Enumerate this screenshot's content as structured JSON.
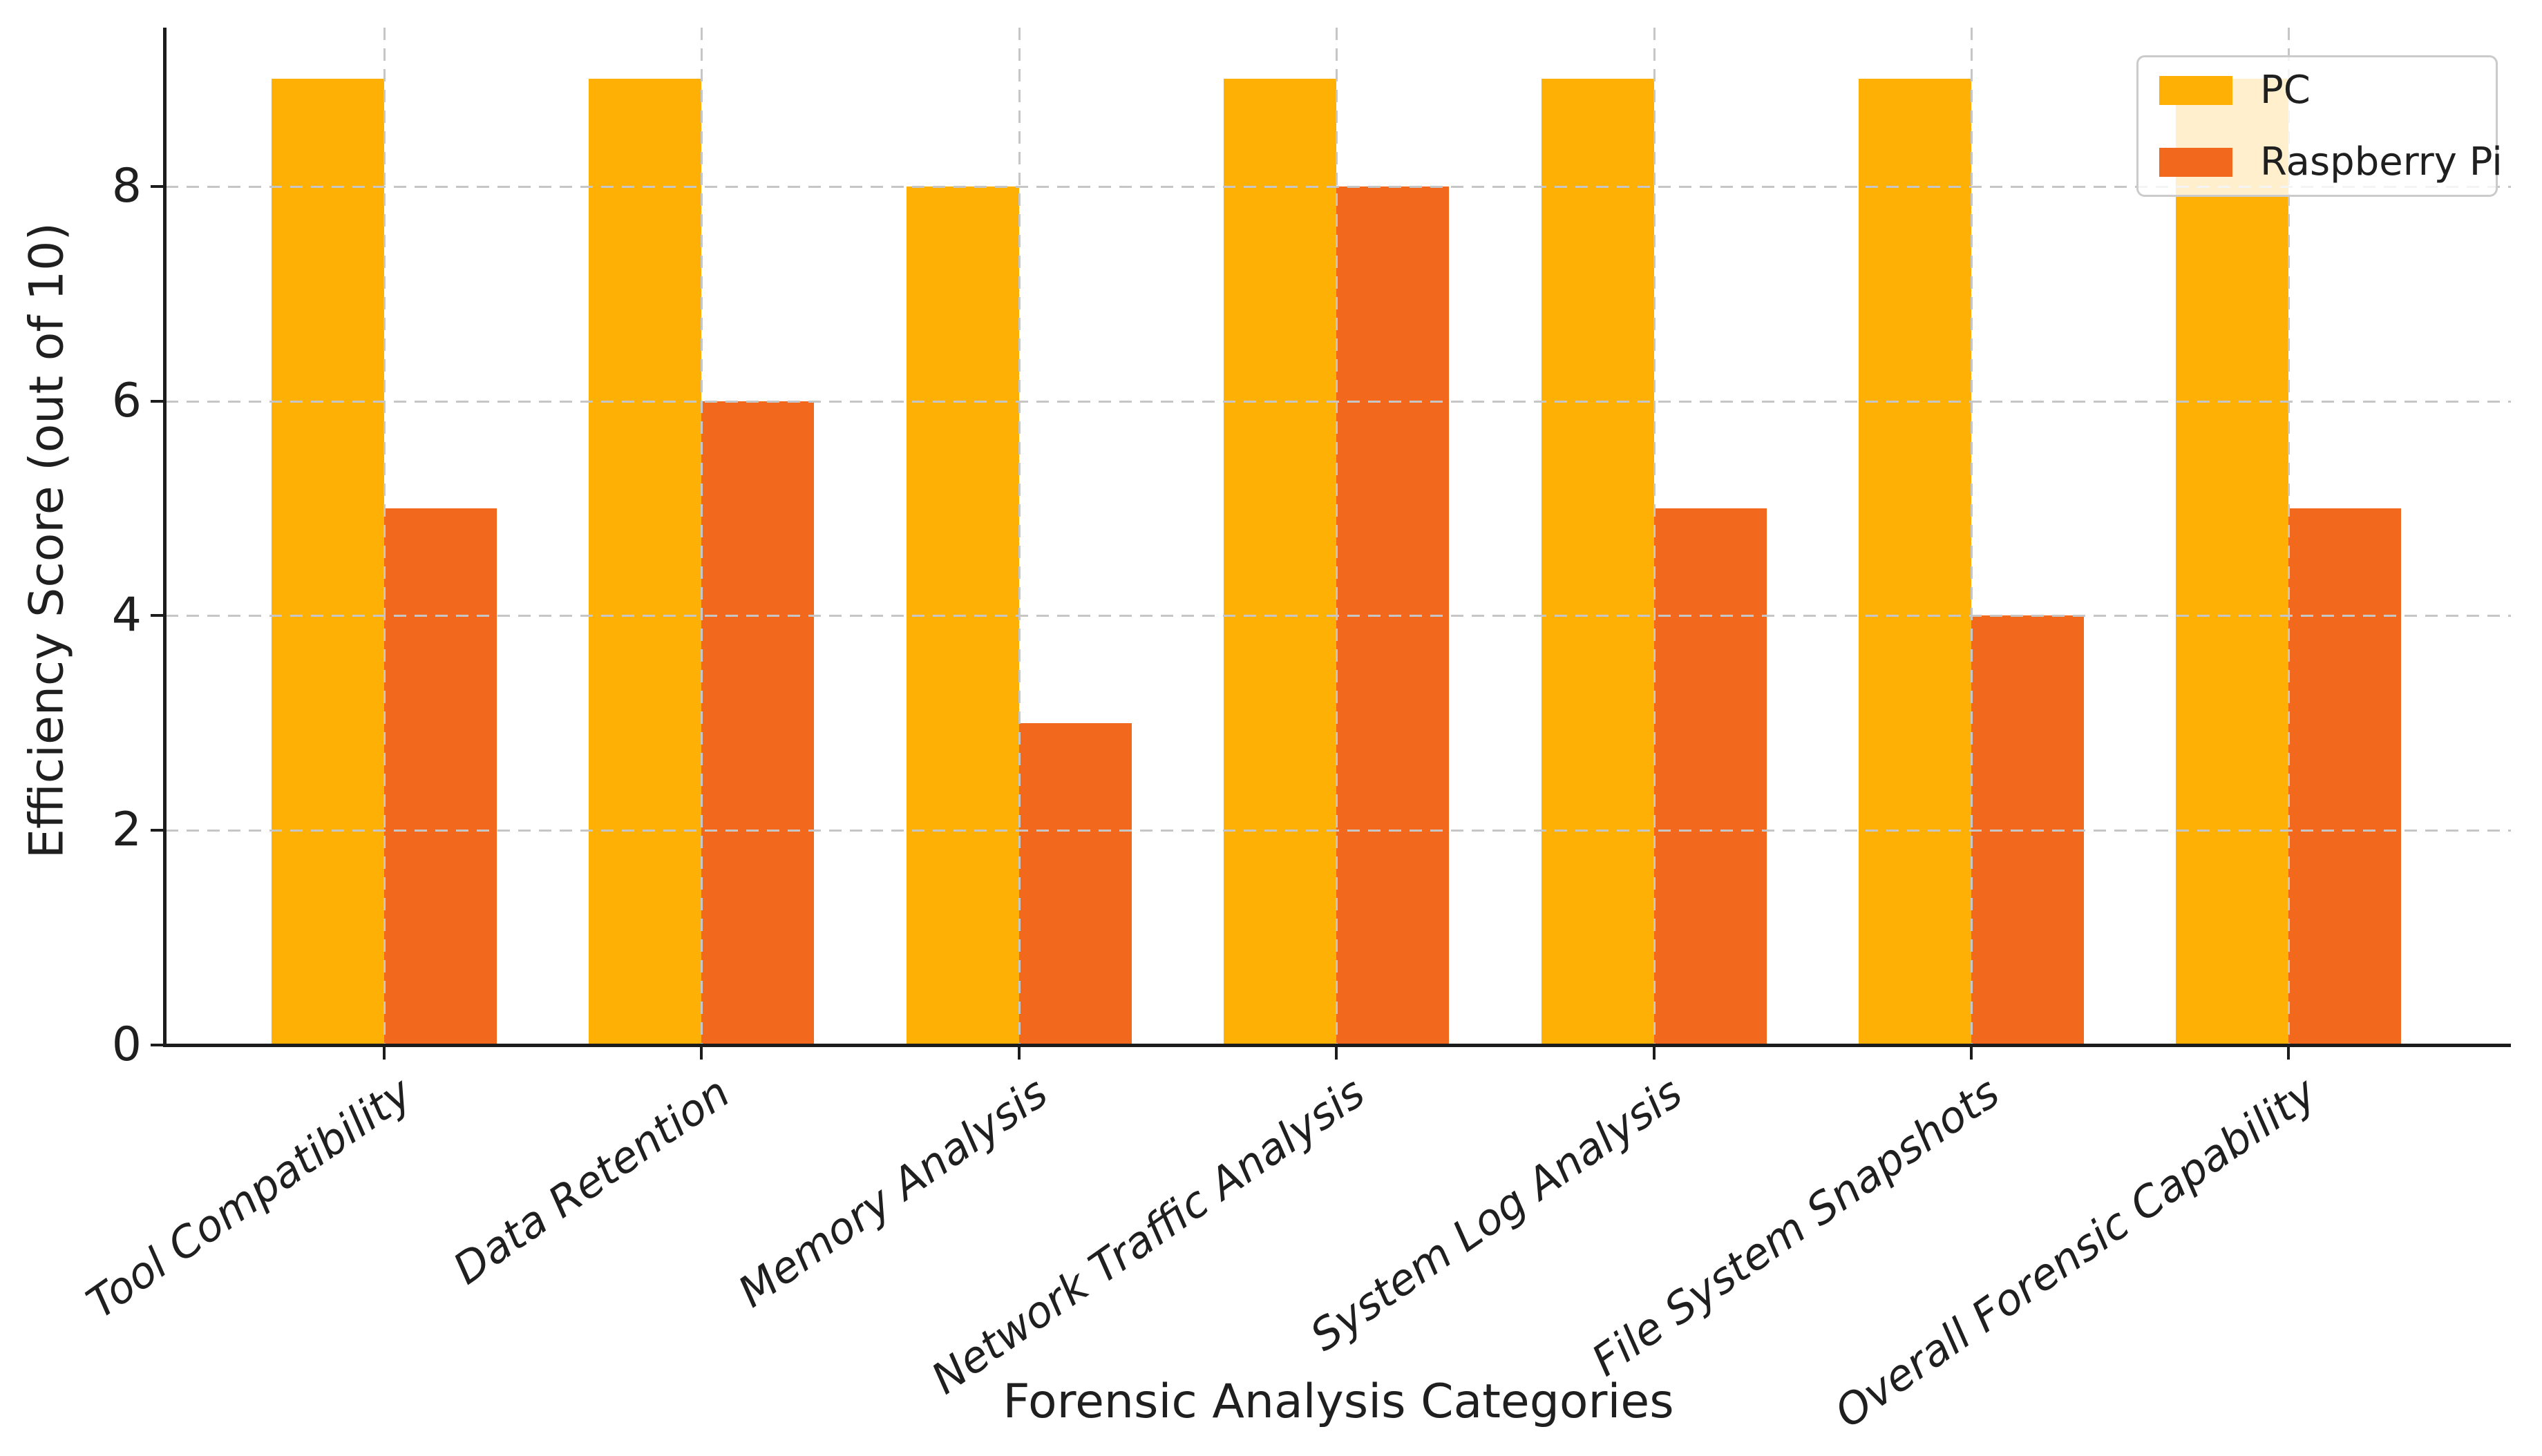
{
  "chart_data": {
    "type": "bar",
    "title": "",
    "xlabel": "Forensic Analysis Categories",
    "ylabel": "Efficiency Score (out of 10)",
    "categories": [
      "Tool Compatibility",
      "Data Retention",
      "Memory Analysis",
      "Network Traffic Analysis",
      "System Log Analysis",
      "File System Snapshots",
      "Overall Forensic Capability"
    ],
    "series": [
      {
        "name": "PC",
        "color": "#FFB005",
        "values": [
          9,
          9,
          8,
          9,
          9,
          9,
          9
        ]
      },
      {
        "name": "Raspberry Pi",
        "color": "#F2691E",
        "values": [
          5,
          6,
          3,
          8,
          5,
          4,
          5
        ]
      }
    ],
    "ylim": [
      0,
      9.5
    ],
    "yticks": [
      0,
      2,
      4,
      6,
      8
    ],
    "grid": "dashed gridlines on both axes, drawn above bars",
    "legend_position": "upper right",
    "xtick_label_style": "italic, rotated 35deg, right-anchored",
    "bar_width_fraction": 0.355
  },
  "colors": {
    "background": "#ffffff",
    "axis": "#1c1c1c",
    "grid": "#c6c6c6",
    "text": "#1f1f1f",
    "legend_border": "#cbcbcb"
  }
}
